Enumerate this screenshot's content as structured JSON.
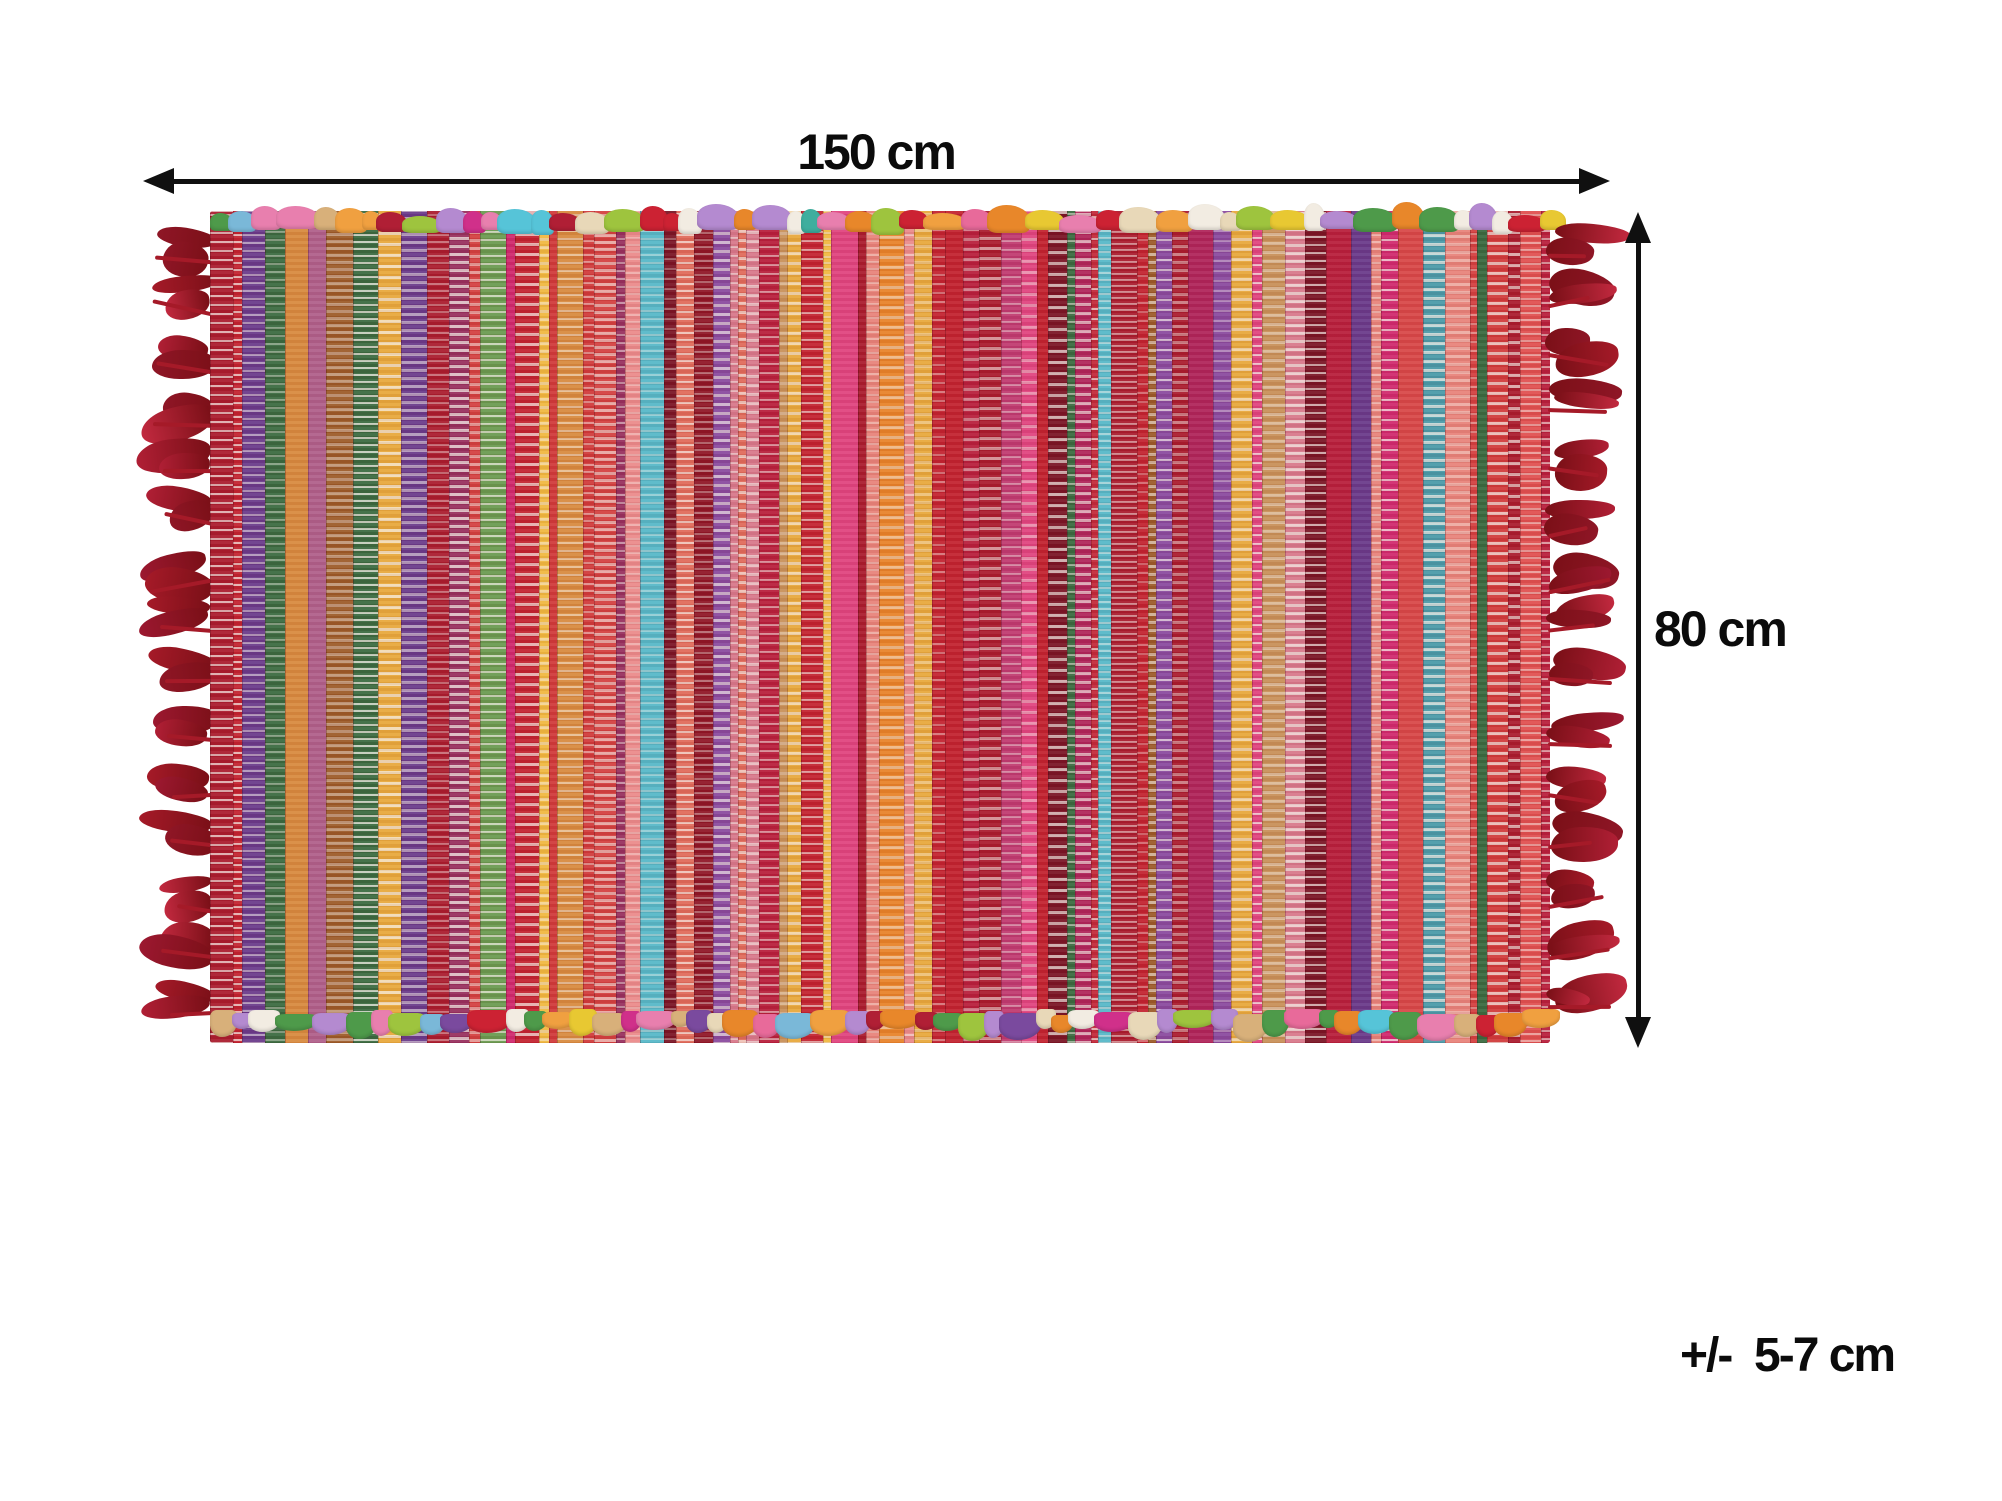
{
  "diagram": {
    "width_label": "150 cm",
    "height_label": "80 cm",
    "tolerance_label": "+/-  5-7 cm",
    "arrow_color": "#101010",
    "text_color": "#0b0b0b",
    "background_color": "#ffffff"
  },
  "rug": {
    "description": "multicolour red handwoven rag rug with fringed short ends",
    "weft_color": "#f7f1ea",
    "fringe_colors": [
      "#8f1626",
      "#a51a28",
      "#b01f35",
      "#c2293f",
      "#9c1830"
    ],
    "stripe_palette": [
      "#c22330",
      "#b81f3c",
      "#d03a3a",
      "#aa1c2e",
      "#8f1626",
      "#d84848",
      "#e05050",
      "#c22a3a",
      "#d02a6e",
      "#e0447f",
      "#c03a70",
      "#b0255a",
      "#e8837a",
      "#e06a5a",
      "#eb8a8a",
      "#d8788a",
      "#7a1525",
      "#9c1c30",
      "#d34040",
      "#c22330",
      "#e8832a",
      "#d88a3f",
      "#c89058",
      "#e8a83c",
      "#f0b840",
      "#9c5a28",
      "#4a9aa8",
      "#56b8c8",
      "#5878a0",
      "#3a6a40",
      "#6a9a50",
      "#6a3a8a",
      "#8a4a9e",
      "#98305e",
      "#b0608a",
      "#f0b8c0",
      "#c22330",
      "#b81f3c",
      "#d03a3a",
      "#aa1c2e"
    ],
    "binding_palette": [
      "#e87fae",
      "#d0308a",
      "#3fae9e",
      "#56c4d8",
      "#7a4a9e",
      "#b48ad0",
      "#d8b07a",
      "#e8d8b8",
      "#4e9a4a",
      "#9ec43e",
      "#e8872a",
      "#e8c832",
      "#cc2233",
      "#7ab8d8",
      "#f2ece2",
      "#b01f35",
      "#e86a9a",
      "#f0a040"
    ]
  }
}
